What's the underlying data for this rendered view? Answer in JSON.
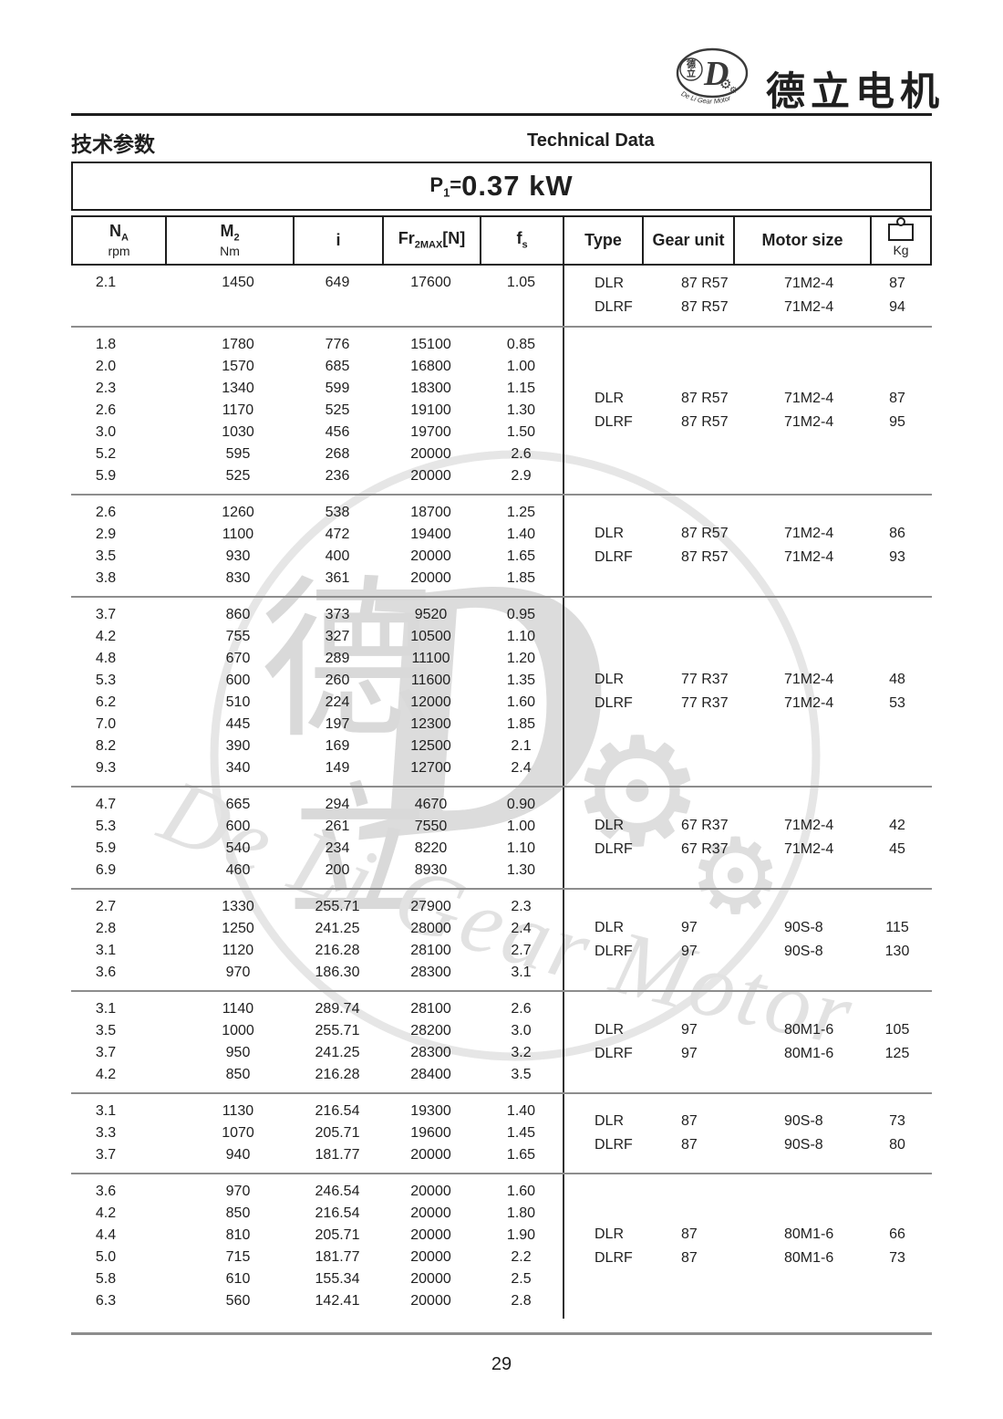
{
  "brand": {
    "name": "德立电机"
  },
  "logo": {
    "seal_top": "德",
    "seal_bottom": "立",
    "monogram": "D",
    "arc_text": "De Li Gear Motor",
    "gear_glyph": "⚙"
  },
  "header": {
    "title_cn": "技术参数",
    "title_en": "Technical Data",
    "power": {
      "symbol": "P",
      "symbol_sub": "1",
      "equals": "=",
      "value": "0.37 kW"
    }
  },
  "table": {
    "columns": [
      {
        "label": "N",
        "sub": "A",
        "unit": "rpm"
      },
      {
        "label": "M",
        "sub": "2",
        "unit": "Nm"
      },
      {
        "label": "i"
      },
      {
        "label": "Fr",
        "sub": "2MAX",
        "suffix": "[N]"
      },
      {
        "label": "f",
        "sub": "s"
      },
      {
        "label": "Type"
      },
      {
        "label": "Gear unit"
      },
      {
        "label": "Motor size"
      },
      {
        "label": "Kg",
        "icon": "weight-icon"
      }
    ],
    "groups": [
      {
        "rows": [
          [
            "2.1",
            "1450",
            "649",
            "17600",
            "1.05"
          ]
        ],
        "variants": [
          {
            "type": "DLR",
            "gear_unit": "87 R57",
            "motor_size": "71M2-4",
            "weight": "87"
          },
          {
            "type": "DLRF",
            "gear_unit": "87 R57",
            "motor_size": "71M2-4",
            "weight": "94"
          }
        ]
      },
      {
        "rows": [
          [
            "1.8",
            "1780",
            "776",
            "15100",
            "0.85"
          ],
          [
            "2.0",
            "1570",
            "685",
            "16800",
            "1.00"
          ],
          [
            "2.3",
            "1340",
            "599",
            "18300",
            "1.15"
          ],
          [
            "2.6",
            "1170",
            "525",
            "19100",
            "1.30"
          ],
          [
            "3.0",
            "1030",
            "456",
            "19700",
            "1.50"
          ],
          [
            "5.2",
            "595",
            "268",
            "20000",
            "2.6"
          ],
          [
            "5.9",
            "525",
            "236",
            "20000",
            "2.9"
          ]
        ],
        "variants": [
          {
            "type": "DLR",
            "gear_unit": "87 R57",
            "motor_size": "71M2-4",
            "weight": "87"
          },
          {
            "type": "DLRF",
            "gear_unit": "87 R57",
            "motor_size": "71M2-4",
            "weight": "95"
          }
        ]
      },
      {
        "rows": [
          [
            "2.6",
            "1260",
            "538",
            "18700",
            "1.25"
          ],
          [
            "2.9",
            "1100",
            "472",
            "19400",
            "1.40"
          ],
          [
            "3.5",
            "930",
            "400",
            "20000",
            "1.65"
          ],
          [
            "3.8",
            "830",
            "361",
            "20000",
            "1.85"
          ]
        ],
        "variants": [
          {
            "type": "DLR",
            "gear_unit": "87 R57",
            "motor_size": "71M2-4",
            "weight": "86"
          },
          {
            "type": "DLRF",
            "gear_unit": "87 R57",
            "motor_size": "71M2-4",
            "weight": "93"
          }
        ]
      },
      {
        "rows": [
          [
            "3.7",
            "860",
            "373",
            "9520",
            "0.95"
          ],
          [
            "4.2",
            "755",
            "327",
            "10500",
            "1.10"
          ],
          [
            "4.8",
            "670",
            "289",
            "11100",
            "1.20"
          ],
          [
            "5.3",
            "600",
            "260",
            "11600",
            "1.35"
          ],
          [
            "6.2",
            "510",
            "224",
            "12000",
            "1.60"
          ],
          [
            "7.0",
            "445",
            "197",
            "12300",
            "1.85"
          ],
          [
            "8.2",
            "390",
            "169",
            "12500",
            "2.1"
          ],
          [
            "9.3",
            "340",
            "149",
            "12700",
            "2.4"
          ]
        ],
        "variants": [
          {
            "type": "DLR",
            "gear_unit": "77 R37",
            "motor_size": "71M2-4",
            "weight": "48"
          },
          {
            "type": "DLRF",
            "gear_unit": "77 R37",
            "motor_size": "71M2-4",
            "weight": "53"
          }
        ]
      },
      {
        "rows": [
          [
            "4.7",
            "665",
            "294",
            "4670",
            "0.90"
          ],
          [
            "5.3",
            "600",
            "261",
            "7550",
            "1.00"
          ],
          [
            "5.9",
            "540",
            "234",
            "8220",
            "1.10"
          ],
          [
            "6.9",
            "460",
            "200",
            "8930",
            "1.30"
          ]
        ],
        "variants": [
          {
            "type": "DLR",
            "gear_unit": "67 R37",
            "motor_size": "71M2-4",
            "weight": "42"
          },
          {
            "type": "DLRF",
            "gear_unit": "67 R37",
            "motor_size": "71M2-4",
            "weight": "45"
          }
        ]
      },
      {
        "rows": [
          [
            "2.7",
            "1330",
            "255.71",
            "27900",
            "2.3"
          ],
          [
            "2.8",
            "1250",
            "241.25",
            "28000",
            "2.4"
          ],
          [
            "3.1",
            "1120",
            "216.28",
            "28100",
            "2.7"
          ],
          [
            "3.6",
            "970",
            "186.30",
            "28300",
            "3.1"
          ]
        ],
        "variants": [
          {
            "type": "DLR",
            "gear_unit": "97",
            "motor_size": "90S-8",
            "weight": "115"
          },
          {
            "type": "DLRF",
            "gear_unit": "97",
            "motor_size": "90S-8",
            "weight": "130"
          }
        ]
      },
      {
        "rows": [
          [
            "3.1",
            "1140",
            "289.74",
            "28100",
            "2.6"
          ],
          [
            "3.5",
            "1000",
            "255.71",
            "28200",
            "3.0"
          ],
          [
            "3.7",
            "950",
            "241.25",
            "28300",
            "3.2"
          ],
          [
            "4.2",
            "850",
            "216.28",
            "28400",
            "3.5"
          ]
        ],
        "variants": [
          {
            "type": "DLR",
            "gear_unit": "97",
            "motor_size": "80M1-6",
            "weight": "105"
          },
          {
            "type": "DLRF",
            "gear_unit": "97",
            "motor_size": "80M1-6",
            "weight": "125"
          }
        ]
      },
      {
        "rows": [
          [
            "3.1",
            "1130",
            "216.54",
            "19300",
            "1.40"
          ],
          [
            "3.3",
            "1070",
            "205.71",
            "19600",
            "1.45"
          ],
          [
            "3.7",
            "940",
            "181.77",
            "20000",
            "1.65"
          ]
        ],
        "variants": [
          {
            "type": "DLR",
            "gear_unit": "87",
            "motor_size": "90S-8",
            "weight": "73"
          },
          {
            "type": "DLRF",
            "gear_unit": "87",
            "motor_size": "90S-8",
            "weight": "80"
          }
        ]
      },
      {
        "rows": [
          [
            "3.6",
            "970",
            "246.54",
            "20000",
            "1.60"
          ],
          [
            "4.2",
            "850",
            "216.54",
            "20000",
            "1.80"
          ],
          [
            "4.4",
            "810",
            "205.71",
            "20000",
            "1.90"
          ],
          [
            "5.0",
            "715",
            "181.77",
            "20000",
            "2.2"
          ],
          [
            "5.8",
            "610",
            "155.34",
            "20000",
            "2.5"
          ],
          [
            "6.3",
            "560",
            "142.41",
            "20000",
            "2.8"
          ]
        ],
        "variants": [
          {
            "type": "DLR",
            "gear_unit": "87",
            "motor_size": "80M1-6",
            "weight": "66"
          },
          {
            "type": "DLRF",
            "gear_unit": "87",
            "motor_size": "80M1-6",
            "weight": "73"
          }
        ]
      }
    ]
  },
  "watermark": {
    "ideograph_top": "德",
    "ideograph_bottom": "立",
    "monogram": "D",
    "script_text": "De Li Gear Motor",
    "gear_glyph": "⚙"
  },
  "footer": {
    "page_number": "29"
  }
}
